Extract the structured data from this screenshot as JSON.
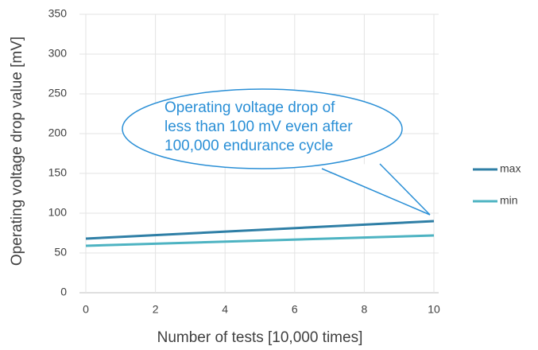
{
  "chart_data": {
    "type": "line",
    "xlabel": "Number of tests [10,000 times]",
    "ylabel": "Operating voltage drop value [mV]",
    "annotation": [
      "Operating voltage drop of",
      "less than 100 mV even after",
      "100,000 endurance cycle"
    ],
    "x": [
      0,
      10
    ],
    "series": [
      {
        "name": "max",
        "color": "#2f7fa6",
        "values": [
          68,
          90
        ]
      },
      {
        "name": "min",
        "color": "#4db3c2",
        "values": [
          59,
          72
        ]
      }
    ],
    "xlim": [
      0,
      10
    ],
    "xticks": [
      0,
      2,
      4,
      6,
      8,
      10
    ],
    "ylim": [
      0,
      350
    ],
    "yticks": [
      0,
      50,
      100,
      150,
      200,
      250,
      300,
      350
    ],
    "grid": true,
    "legend": "right"
  }
}
